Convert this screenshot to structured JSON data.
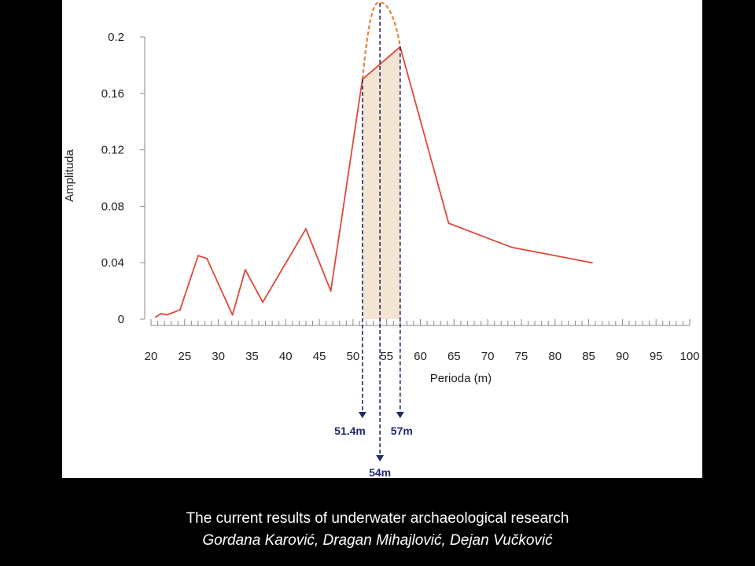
{
  "chart_data": {
    "type": "line",
    "xlabel": "Perioda (m)",
    "ylabel": "Amplituda",
    "xlim": [
      20,
      100
    ],
    "ylim": [
      0,
      0.2
    ],
    "x_ticks": [
      20,
      25,
      30,
      35,
      40,
      45,
      50,
      55,
      60,
      65,
      70,
      75,
      80,
      85,
      90,
      95,
      100
    ],
    "x_tick_labels": [
      "20",
      "25",
      "30",
      "35",
      "40",
      "45",
      "50",
      "55",
      "60",
      "65",
      "70",
      "75",
      "80",
      "85",
      "90",
      "95",
      "100"
    ],
    "y_ticks": [
      0,
      0.04,
      0.08,
      0.12,
      0.16,
      0.2
    ],
    "y_tick_labels": [
      "0",
      "0.04",
      "0.08",
      "0.12",
      "0.16",
      "0.2"
    ],
    "series": [
      {
        "color": "#e0473a",
        "x": [
          20.7,
          21.5,
          22.3,
          24.3,
          27.0,
          28.3,
          32.1,
          34.0,
          36.6,
          43.0,
          46.7,
          51.4,
          57.0,
          64.2,
          73.5,
          85.5
        ],
        "y": [
          0.0015,
          0.004,
          0.003,
          0.0065,
          0.045,
          0.043,
          0.003,
          0.035,
          0.012,
          0.064,
          0.02,
          0.17,
          0.193,
          0.068,
          0.051,
          0.04
        ]
      }
    ],
    "highlight_band": {
      "x_range": [
        51.4,
        57.0
      ],
      "color": "#f4e4d2"
    },
    "interpolated_peak": {
      "color": "#e8843a",
      "x": [
        51.4,
        54.0,
        57.0
      ],
      "y": [
        0.17,
        0.224,
        0.193
      ]
    },
    "markers": [
      {
        "x": 51.4,
        "label": "51.4m"
      },
      {
        "x": 57.0,
        "label": "57m"
      },
      {
        "x": 54.0,
        "label": "54m"
      }
    ],
    "marker_color": "#1f2a6b",
    "grid": false
  },
  "caption": {
    "title": "The current results of underwater archaeological research",
    "authors": "Gordana Karović, Dragan Mihajlović, Dejan Vučković"
  }
}
